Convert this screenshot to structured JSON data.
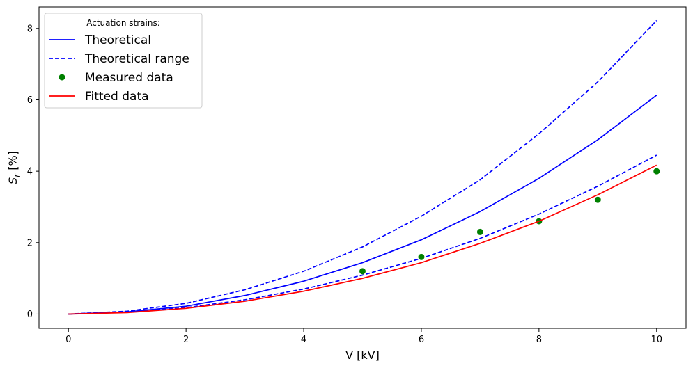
{
  "chart_data": {
    "type": "line",
    "title": "",
    "xlabel": "V [kV]",
    "ylabel_main": "S",
    "ylabel_sub": "r",
    "ylabel_suffix": " [%]",
    "xlim": [
      -0.5,
      10.5
    ],
    "ylim": [
      -0.4,
      8.6
    ],
    "x_ticks": [
      0,
      2,
      4,
      6,
      8,
      10
    ],
    "y_ticks": [
      0,
      2,
      4,
      6,
      8
    ],
    "grid": false,
    "legend": {
      "title": "Actuation strains:",
      "placement": "top-left"
    },
    "series": [
      {
        "name": "Theoretical",
        "kind": "line",
        "style": "solid",
        "color": "#0000ff",
        "x": [
          0,
          1,
          2,
          3,
          4,
          5,
          6,
          7,
          8,
          9,
          10
        ],
        "y": [
          0.0,
          0.06,
          0.22,
          0.52,
          0.92,
          1.44,
          2.08,
          2.87,
          3.8,
          4.88,
          6.13
        ]
      },
      {
        "name": "Theoretical range",
        "kind": "line",
        "style": "dashed",
        "color": "#0000ff",
        "x": [
          0,
          1,
          2,
          3,
          4,
          5,
          6,
          7,
          8,
          9,
          10
        ],
        "y": [
          0.0,
          0.08,
          0.3,
          0.68,
          1.2,
          1.88,
          2.74,
          3.76,
          5.05,
          6.5,
          8.22
        ]
      },
      {
        "name": "",
        "kind": "line",
        "style": "dashed",
        "color": "#0000ff",
        "x": [
          0,
          1,
          2,
          3,
          4,
          5,
          6,
          7,
          8,
          9,
          10
        ],
        "y": [
          0.0,
          0.05,
          0.18,
          0.4,
          0.7,
          1.09,
          1.56,
          2.12,
          2.8,
          3.58,
          4.45
        ]
      },
      {
        "name": "Measured data",
        "kind": "scatter",
        "color": "#008000",
        "x": [
          5,
          6,
          7,
          8,
          9,
          10
        ],
        "y": [
          1.2,
          1.6,
          2.3,
          2.6,
          3.2,
          4.0
        ]
      },
      {
        "name": "Fitted data",
        "kind": "line",
        "style": "solid",
        "color": "#ff0000",
        "x": [
          0,
          1,
          2,
          3,
          4,
          5,
          6,
          7,
          8,
          9,
          10
        ],
        "y": [
          0.0,
          0.04,
          0.16,
          0.36,
          0.64,
          1.0,
          1.44,
          1.98,
          2.6,
          3.34,
          4.17
        ]
      }
    ]
  }
}
